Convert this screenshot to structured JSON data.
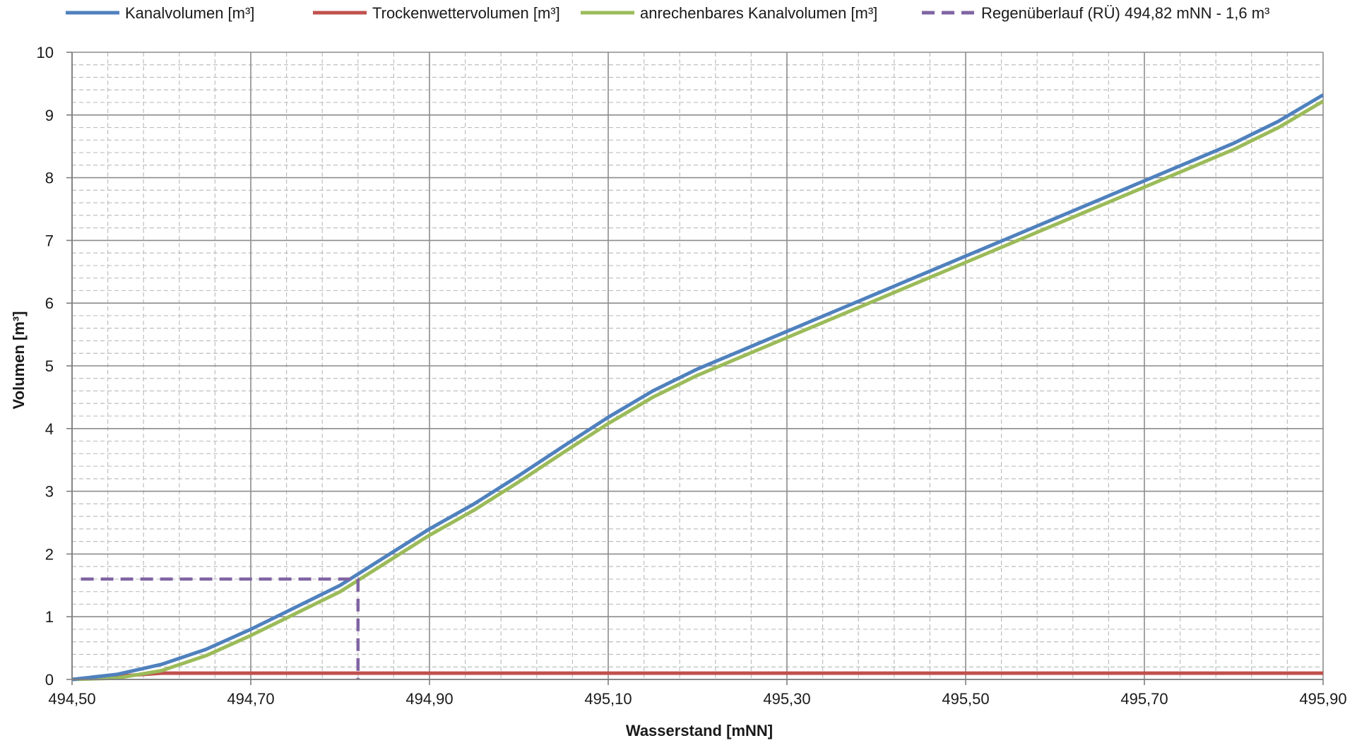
{
  "chart_data": {
    "type": "line",
    "title": "",
    "xlabel": "Wasserstand [mNN]",
    "ylabel": "Volumen [m³]",
    "xlim": [
      494.5,
      495.9
    ],
    "ylim": [
      0,
      10
    ],
    "x_ticks": [
      494.5,
      494.7,
      494.9,
      495.1,
      495.3,
      495.5,
      495.7,
      495.9
    ],
    "x_tick_labels": [
      "494,50",
      "494,70",
      "494,90",
      "495,10",
      "495,30",
      "495,50",
      "495,70",
      "495,90"
    ],
    "y_ticks": [
      0,
      1,
      2,
      3,
      4,
      5,
      6,
      7,
      8,
      9,
      10
    ],
    "y_tick_labels": [
      "0",
      "1",
      "2",
      "3",
      "4",
      "5",
      "6",
      "7",
      "8",
      "9",
      "10"
    ],
    "grid": true,
    "legend_position": "top",
    "series": [
      {
        "name": "Kanalvolumen [m³]",
        "color": "#4f81bd",
        "style": "solid",
        "x": [
          494.5,
          494.55,
          494.6,
          494.65,
          494.7,
          494.75,
          494.8,
          494.85,
          494.9,
          494.95,
          495.0,
          495.05,
          495.1,
          495.15,
          495.2,
          495.25,
          495.3,
          495.35,
          495.4,
          495.45,
          495.5,
          495.55,
          495.6,
          495.65,
          495.7,
          495.75,
          495.8,
          495.85,
          495.9
        ],
        "y": [
          0.0,
          0.08,
          0.24,
          0.48,
          0.8,
          1.15,
          1.5,
          1.95,
          2.4,
          2.8,
          3.25,
          3.72,
          4.18,
          4.6,
          4.95,
          5.25,
          5.55,
          5.85,
          6.15,
          6.45,
          6.75,
          7.05,
          7.35,
          7.65,
          7.95,
          8.25,
          8.55,
          8.9,
          9.32
        ]
      },
      {
        "name": "Trockenwettervolumen [m³]",
        "color": "#c0504d",
        "style": "solid",
        "x": [
          494.5,
          494.6,
          495.9
        ],
        "y": [
          0.0,
          0.1,
          0.1
        ]
      },
      {
        "name": "anrechenbares Kanalvolumen [m³]",
        "color": "#9bbb59",
        "style": "solid",
        "x": [
          494.5,
          494.55,
          494.6,
          494.65,
          494.7,
          494.75,
          494.8,
          494.85,
          494.9,
          494.95,
          495.0,
          495.05,
          495.1,
          495.15,
          495.2,
          495.25,
          495.3,
          495.35,
          495.4,
          495.45,
          495.5,
          495.55,
          495.6,
          495.65,
          495.7,
          495.75,
          495.8,
          495.85,
          495.9
        ],
        "y": [
          0.0,
          0.02,
          0.14,
          0.38,
          0.7,
          1.05,
          1.4,
          1.85,
          2.3,
          2.7,
          3.15,
          3.62,
          4.08,
          4.5,
          4.85,
          5.15,
          5.45,
          5.75,
          6.05,
          6.35,
          6.65,
          6.95,
          7.25,
          7.55,
          7.85,
          8.15,
          8.45,
          8.8,
          9.22
        ]
      },
      {
        "name": "Regenüberlauf (RÜ) 494,82 mNN - 1,6 m³",
        "color": "#8064a2",
        "style": "dashed",
        "x": [
          494.51,
          494.82,
          494.82
        ],
        "y": [
          1.6,
          1.6,
          0.0
        ]
      }
    ]
  }
}
